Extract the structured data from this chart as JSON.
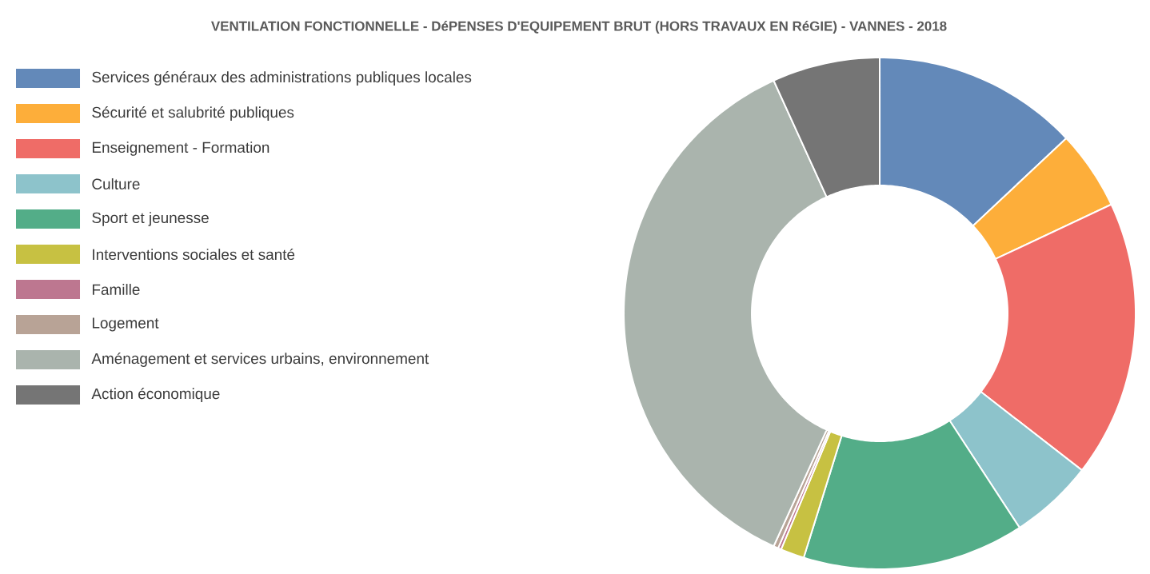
{
  "chart_data": {
    "type": "donut",
    "title": "VENTILATION FONCTIONNELLE - DéPENSES D'EQUIPEMENT BRUT (HORS TRAVAUX EN RéGIE) - VANNES - 2018",
    "categories": [
      "Services généraux des administrations publiques locales",
      "Sécurité et salubrité publiques",
      "Enseignement - Formation",
      "Culture",
      "Sport et jeunesse",
      "Interventions sociales et santé",
      "Famille",
      "Logement",
      "Aménagement et services urbains, environnement",
      "Action économique"
    ],
    "values": [
      13.0,
      5.0,
      17.5,
      5.3,
      14.0,
      1.5,
      0.2,
      0.3,
      36.4,
      6.8
    ],
    "colors": [
      "#6389b9",
      "#fdae3a",
      "#ef6c67",
      "#8dc3cb",
      "#53ad88",
      "#c7c142",
      "#bd7790",
      "#b8a396",
      "#aab4ad",
      "#757575"
    ],
    "legend": "left"
  }
}
